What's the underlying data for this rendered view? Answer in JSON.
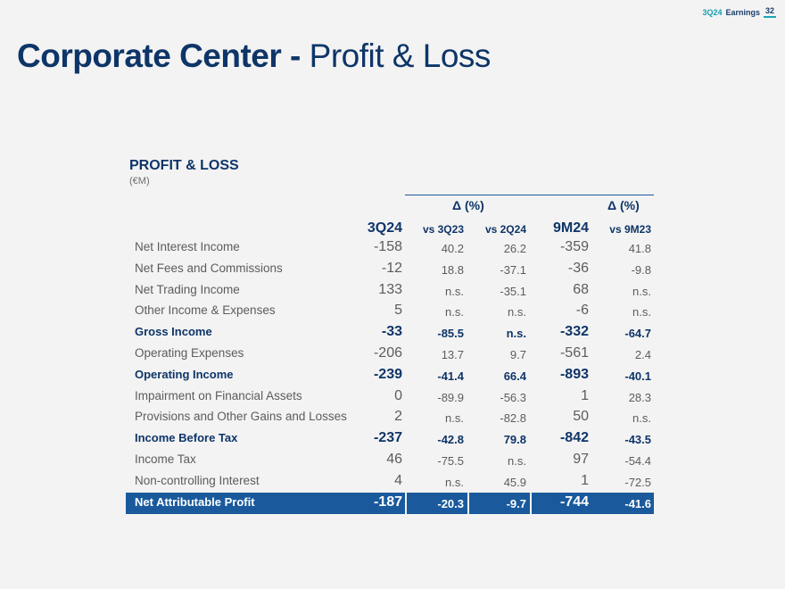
{
  "header": {
    "period": "3Q24",
    "label": "Earnings",
    "page": "32"
  },
  "title": {
    "bold": "Corporate Center -",
    "light": "Profit & Loss"
  },
  "section": {
    "title": "PROFIT & LOSS",
    "unit": "(€M)"
  },
  "table": {
    "group_labels": [
      "Δ (%)",
      "Δ (%)"
    ],
    "columns": [
      "3Q24",
      "vs 3Q23",
      "vs 2Q24",
      "9M24",
      "vs 9M23"
    ],
    "rows": [
      {
        "label": "Net Interest Income",
        "v": [
          "-158",
          "40.2",
          "26.2",
          "-359",
          "41.8"
        ],
        "style": "normal"
      },
      {
        "label": "Net Fees and Commissions",
        "v": [
          "-12",
          "18.8",
          "-37.1",
          "-36",
          "-9.8"
        ],
        "style": "normal"
      },
      {
        "label": "Net Trading Income",
        "v": [
          "133",
          "n.s.",
          "-35.1",
          "68",
          "n.s."
        ],
        "style": "normal"
      },
      {
        "label": "Other Income & Expenses",
        "v": [
          "5",
          "n.s.",
          "n.s.",
          "-6",
          "n.s."
        ],
        "style": "normal"
      },
      {
        "label": "Gross Income",
        "v": [
          "-33",
          "-85.5",
          "n.s.",
          "-332",
          "-64.7"
        ],
        "style": "highlight"
      },
      {
        "label": "Operating Expenses",
        "v": [
          "-206",
          "13.7",
          "9.7",
          "-561",
          "2.4"
        ],
        "style": "normal"
      },
      {
        "label": "Operating Income",
        "v": [
          "-239",
          "-41.4",
          "66.4",
          "-893",
          "-40.1"
        ],
        "style": "highlight"
      },
      {
        "label": "Impairment on Financial Assets",
        "v": [
          "0",
          "-89.9",
          "-56.3",
          "1",
          "28.3"
        ],
        "style": "normal"
      },
      {
        "label": "Provisions and Other Gains and Losses",
        "v": [
          "2",
          "n.s.",
          "-82.8",
          "50",
          "n.s."
        ],
        "style": "normal"
      },
      {
        "label": "Income Before Tax",
        "v": [
          "-237",
          "-42.8",
          "79.8",
          "-842",
          "-43.5"
        ],
        "style": "highlight"
      },
      {
        "label": "Income Tax",
        "v": [
          "46",
          "-75.5",
          "n.s.",
          "97",
          "-54.4"
        ],
        "style": "normal"
      },
      {
        "label": "Non-controlling Interest",
        "v": [
          "4",
          "n.s.",
          "45.9",
          "1",
          "-72.5"
        ],
        "style": "normal"
      },
      {
        "label": "Net Attributable Profit",
        "v": [
          "-187",
          "-20.3",
          "-9.7",
          "-744",
          "-41.6"
        ],
        "style": "total"
      }
    ]
  }
}
